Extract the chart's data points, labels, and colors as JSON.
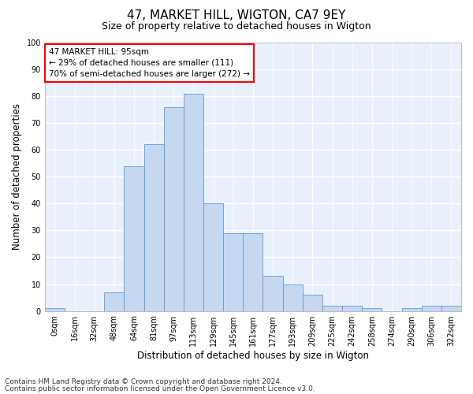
{
  "title1": "47, MARKET HILL, WIGTON, CA7 9EY",
  "title2": "Size of property relative to detached houses in Wigton",
  "xlabel": "Distribution of detached houses by size in Wigton",
  "ylabel": "Number of detached properties",
  "bar_labels": [
    "0sqm",
    "16sqm",
    "32sqm",
    "48sqm",
    "64sqm",
    "81sqm",
    "97sqm",
    "113sqm",
    "129sqm",
    "145sqm",
    "161sqm",
    "177sqm",
    "193sqm",
    "209sqm",
    "225sqm",
    "242sqm",
    "258sqm",
    "274sqm",
    "290sqm",
    "306sqm",
    "322sqm"
  ],
  "bar_values": [
    1,
    0,
    0,
    7,
    54,
    62,
    76,
    81,
    40,
    29,
    29,
    13,
    10,
    6,
    2,
    2,
    1,
    0,
    1,
    2,
    2
  ],
  "bar_color": "#c5d8f0",
  "bar_edge_color": "#5b9bd5",
  "annotation_line1": "47 MARKET HILL: 95sqm",
  "annotation_line2": "← 29% of detached houses are smaller (111)",
  "annotation_line3": "70% of semi-detached houses are larger (272) →",
  "annotation_box_color": "white",
  "annotation_box_edge": "red",
  "ylim": [
    0,
    100
  ],
  "yticks": [
    0,
    10,
    20,
    30,
    40,
    50,
    60,
    70,
    80,
    90,
    100
  ],
  "background_color": "#eaf0fb",
  "grid_color": "white",
  "footer1": "Contains HM Land Registry data © Crown copyright and database right 2024.",
  "footer2": "Contains public sector information licensed under the Open Government Licence v3.0.",
  "title1_fontsize": 11,
  "title2_fontsize": 9,
  "xlabel_fontsize": 8.5,
  "ylabel_fontsize": 8.5,
  "tick_fontsize": 7,
  "annotation_fontsize": 7.5,
  "footer_fontsize": 6.5
}
